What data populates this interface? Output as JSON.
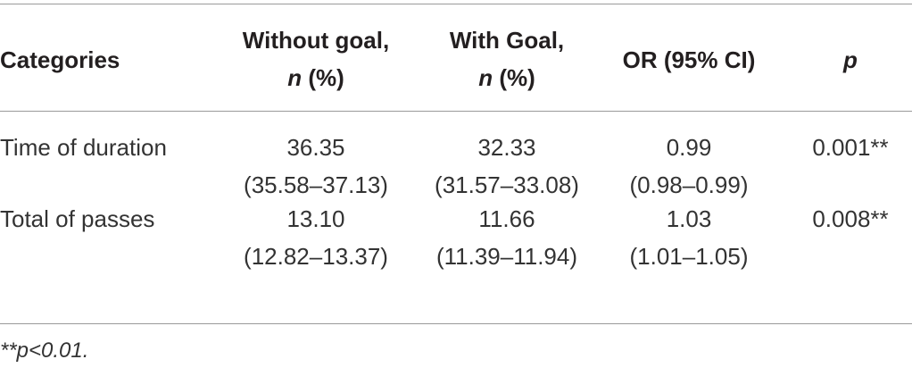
{
  "table": {
    "headers": {
      "categories": "Categories",
      "without_goal_line1": "Without goal,",
      "without_goal_n": "n",
      "without_goal_pct": " (%)",
      "with_goal_line1": "With Goal,",
      "with_goal_n": "n",
      "with_goal_pct": " (%)",
      "or": "OR (95% CI)",
      "p": "p"
    },
    "rows": [
      {
        "category": "Time of duration",
        "without_goal_value": "36.35",
        "without_goal_ci": "(35.58–37.13)",
        "with_goal_value": "32.33",
        "with_goal_ci": "(31.57–33.08)",
        "or_value": "0.99",
        "or_ci": "(0.98–0.99)",
        "p": "0.001**"
      },
      {
        "category": "Total of passes",
        "without_goal_value": "13.10",
        "without_goal_ci": "(12.82–13.37)",
        "with_goal_value": "11.66",
        "with_goal_ci": "(11.39–11.94)",
        "or_value": "1.03",
        "or_ci": "(1.01–1.05)",
        "p": "0.008**"
      }
    ]
  },
  "footnote": "**p<0.01."
}
